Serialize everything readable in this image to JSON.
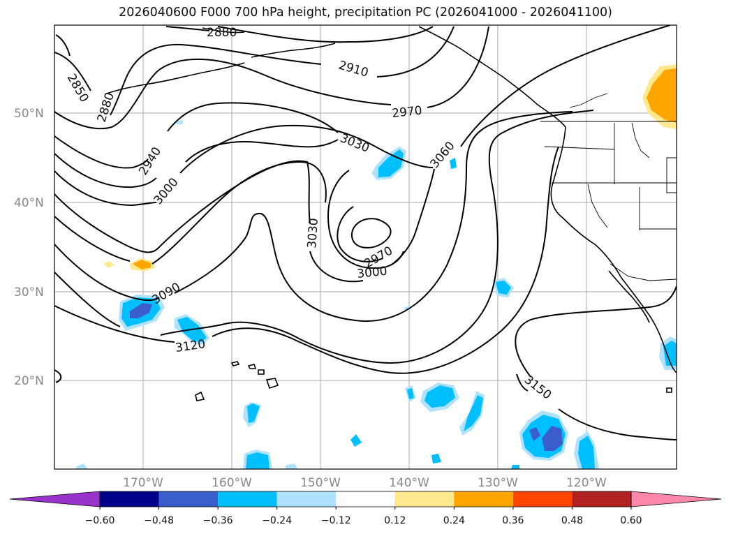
{
  "title": "2026040600 F000 700 hPa height, precipitation PC (2026041000 - 2026041100)",
  "latitude_labels": [
    "50°N",
    "40°N",
    "30°N",
    "20°N"
  ],
  "longitude_labels": [
    "170°W",
    "160°W",
    "150°W",
    "140°W",
    "130°W",
    "120°W"
  ],
  "contour_labels": [
    "2880",
    "2910",
    "2850",
    "2880",
    "2970",
    "3030",
    "2940",
    "3000",
    "3060",
    "3030",
    "2970",
    "3000",
    "3090",
    "3120",
    "3150"
  ],
  "colorbar": {
    "ticks": [
      "−0.60",
      "−0.48",
      "−0.36",
      "−0.24",
      "−0.12",
      "0.12",
      "0.24",
      "0.36",
      "0.48",
      "0.60"
    ],
    "colors": [
      "#9933cc",
      "#00008b",
      "#3a5fcd",
      "#00bfff",
      "#b0e2ff",
      "#ffffff",
      "#ffe98f",
      "#ffa500",
      "#ff4500",
      "#b22222",
      "#ff88aa"
    ]
  },
  "colors": {
    "neg_strong": "#3a5fcd",
    "neg_mid": "#00bfff",
    "neg_light": "#b0e2ff",
    "pos_light": "#ffe98f",
    "pos_mid": "#ffa500"
  }
}
